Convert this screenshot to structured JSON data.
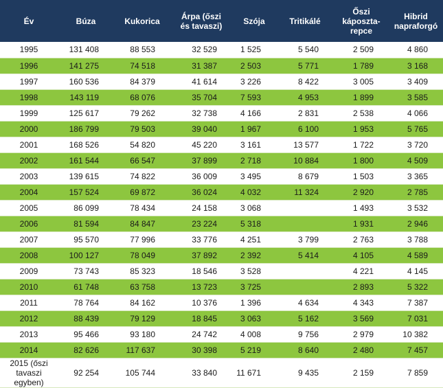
{
  "headers": [
    "Év",
    "Búza",
    "Kukorica",
    "Árpa (őszi\nés tavaszi)",
    "Szója",
    "Tritikálé",
    "Őszi\nkáposzta-\nrepce",
    "Hibrid\nnapraforgó"
  ],
  "rows": [
    [
      "1995",
      "131 408",
      "88 553",
      "32 529",
      "1 525",
      "5 540",
      "2 509",
      "4 860"
    ],
    [
      "1996",
      "141 275",
      "74 518",
      "31 387",
      "2 503",
      "5 771",
      "1 789",
      "3 168"
    ],
    [
      "1997",
      "160 536",
      "84 379",
      "41 614",
      "3 226",
      "8 422",
      "3 005",
      "3 409"
    ],
    [
      "1998",
      "143 119",
      "68 076",
      "35 704",
      "7 593",
      "4 953",
      "1 899",
      "3 585"
    ],
    [
      "1999",
      "125 617",
      "79 262",
      "32 738",
      "4 166",
      "2 831",
      "2 538",
      "4 066"
    ],
    [
      "2000",
      "186 799",
      "79 503",
      "39 040",
      "1 967",
      "6 100",
      "1 953",
      "5 765"
    ],
    [
      "2001",
      "168 526",
      "54 820",
      "45 220",
      "3 161",
      "13 577",
      "1 722",
      "3 720"
    ],
    [
      "2002",
      "161 544",
      "66 547",
      "37 899",
      "2 718",
      "10 884",
      "1 800",
      "4 509"
    ],
    [
      "2003",
      "139 615",
      "74 822",
      "36 009",
      "3 495",
      "8 679",
      "1 503",
      "3 365"
    ],
    [
      "2004",
      "157 524",
      "69 872",
      "36 024",
      "4 032",
      "11 324",
      "2 920",
      "2 785"
    ],
    [
      "2005",
      "86 099",
      "78 434",
      "24 158",
      "3 068",
      "",
      "1 493",
      "3 532"
    ],
    [
      "2006",
      "81 594",
      "84 847",
      "23 224",
      "5 318",
      "",
      "1 931",
      "2 946"
    ],
    [
      "2007",
      "95 570",
      "77 996",
      "33 776",
      "4 251",
      "3 799",
      "2 763",
      "3 788"
    ],
    [
      "2008",
      "100 127",
      "78 049",
      "37 892",
      "2 392",
      "5 414",
      "4 105",
      "4 589"
    ],
    [
      "2009",
      "73 743",
      "85 323",
      "18 546",
      "3 528",
      "",
      "4 221",
      "4 145"
    ],
    [
      "2010",
      "61 748",
      "63 758",
      "13 723",
      "3 725",
      "",
      "2 893",
      "5 322"
    ],
    [
      "2011",
      "78 764",
      "84 162",
      "10 376",
      "1 396",
      "4 634",
      "4 343",
      "7 387"
    ],
    [
      "2012",
      "88 439",
      "79 129",
      "18 845",
      "3 063",
      "5 162",
      "3 569",
      "7 031"
    ],
    [
      "2013",
      "95 466",
      "93 180",
      "24 742",
      "4 008",
      "9 756",
      "2 979",
      "10 382"
    ],
    [
      "2014",
      "82 626",
      "117 637",
      "30 398",
      "5 219",
      "8 640",
      "2 480",
      "7 457"
    ],
    [
      "2015 (őszi tavaszi\negyben)",
      "92 254",
      "105 744",
      "33 840",
      "11 671",
      "9 435",
      "2 159",
      "7 859"
    ]
  ],
  "colors": {
    "header_bg": "#1f3a5f",
    "stripe": "#8dc63f"
  }
}
